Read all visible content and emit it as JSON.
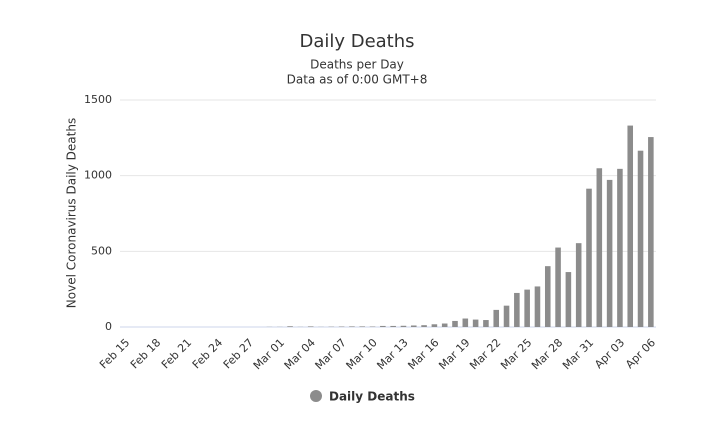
{
  "chart_data": {
    "type": "bar",
    "title": "Daily Deaths",
    "subtitle": "Deaths per Day",
    "subtitle2": "Data as of 0:00 GMT+8",
    "y_label": "Novel Coronavirus Daily Deaths",
    "categories": [
      "Feb 15",
      null,
      null,
      "Feb 18",
      null,
      null,
      "Feb 21",
      null,
      null,
      "Feb 24",
      null,
      null,
      "Feb 27",
      null,
      null,
      "Mar 01",
      null,
      null,
      "Mar 04",
      null,
      null,
      "Mar 07",
      null,
      null,
      "Mar 10",
      null,
      null,
      "Mar 13",
      null,
      null,
      "Mar 16",
      null,
      null,
      "Mar 19",
      null,
      null,
      "Mar 22",
      null,
      null,
      "Mar 25",
      null,
      null,
      "Mar 28",
      null,
      null,
      "Mar 31",
      null,
      null,
      "Apr 03",
      null,
      null,
      "Apr 06"
    ],
    "series": [
      {
        "name": "Daily Deaths",
        "color": "#8c8c8c",
        "values": [
          0,
          0,
          0,
          0,
          0,
          0,
          0,
          0,
          0,
          0,
          0,
          0,
          0,
          0,
          1,
          1,
          5,
          1,
          4,
          1,
          2,
          3,
          4,
          4,
          3,
          7,
          7,
          8,
          10,
          12,
          18,
          23,
          40,
          56,
          49,
          46,
          113,
          141,
          225,
          247,
          268,
          402,
          525,
          363,
          554,
          914,
          1049,
          972,
          1045,
          1331,
          1165,
          1255
        ]
      }
    ],
    "ylim": [
      0,
      1500
    ],
    "yticks": [
      0,
      500,
      1000,
      1500
    ],
    "grid": true,
    "legend": "bottom"
  }
}
